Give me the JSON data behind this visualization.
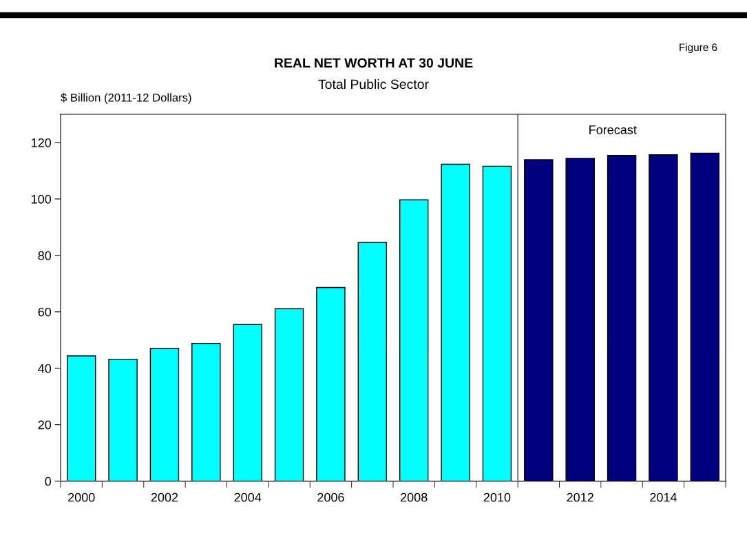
{
  "chart_data": {
    "type": "bar",
    "title": "REAL NET WORTH AT 30 JUNE",
    "subtitle": "Total Public Sector",
    "ylabel": "$ Billion (2011-12 Dollars)",
    "annotations": [
      "Figure 6",
      "Forecast"
    ],
    "x": [
      2000,
      2001,
      2002,
      2003,
      2004,
      2005,
      2006,
      2007,
      2008,
      2009,
      2010,
      2011,
      2012,
      2013,
      2014,
      2015
    ],
    "values": [
      44.4,
      43.2,
      47.0,
      48.8,
      55.5,
      61.1,
      68.6,
      84.6,
      99.7,
      112.3,
      111.6,
      113.9,
      114.4,
      115.4,
      115.7,
      116.2
    ],
    "colors": [
      "#00ffff",
      "#00ffff",
      "#00ffff",
      "#00ffff",
      "#00ffff",
      "#00ffff",
      "#00ffff",
      "#00ffff",
      "#00ffff",
      "#00ffff",
      "#00ffff",
      "#000080",
      "#000080",
      "#000080",
      "#000080",
      "#000080"
    ],
    "xlim": [
      1999.5,
      2015.5
    ],
    "xticks": [
      2000,
      2002,
      2004,
      2006,
      2008,
      2010,
      2012,
      2014,
      {
        "value": 1999.5,
        "label": null
      },
      {
        "value": 2000.5,
        "label": null
      },
      {
        "value": 2001.5,
        "label": null
      },
      {
        "value": 2002.5,
        "label": null
      },
      {
        "value": 2003.5,
        "label": null
      },
      {
        "value": 2004.5,
        "label": null
      },
      {
        "value": 2005.5,
        "label": null
      },
      {
        "value": 2006.5,
        "label": null
      },
      {
        "value": 2007.5,
        "label": null
      },
      {
        "value": 2008.5,
        "label": null
      },
      {
        "value": 2009.5,
        "label": null
      },
      {
        "value": 2010.5,
        "label": null
      },
      {
        "value": 2011.5,
        "label": null
      },
      {
        "value": 2012.5,
        "label": null
      },
      {
        "value": 2013.5,
        "label": null
      },
      {
        "value": 2014.5,
        "label": null
      },
      {
        "value": 2015.5,
        "label": null
      }
    ],
    "ylim": [
      0,
      130
    ],
    "yticks": [
      0,
      20,
      40,
      60,
      80,
      100,
      120
    ],
    "ref_lines": [
      {
        "axis": "x",
        "value": 2010.5,
        "color": "#404040"
      }
    ],
    "grid": false,
    "legend": false
  }
}
